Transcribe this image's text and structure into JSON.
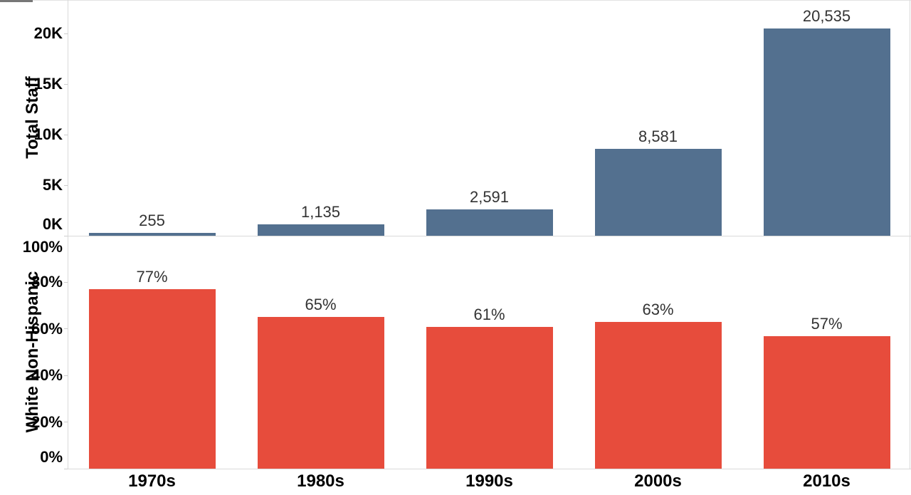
{
  "style": {
    "background": "#ffffff",
    "axis_line_color": "#d9d9d9",
    "tick_mark_color": "#cccccc",
    "value_label_color": "#333333",
    "axis_text_color": "#000000",
    "top_edge_color": "#e3e3e3",
    "top_edge_accent_color": "#777777"
  },
  "chart_data": [
    {
      "type": "bar",
      "pane": "top",
      "title": "",
      "xlabel": "",
      "ylabel": "Total Staff",
      "categories": [
        "1970s",
        "1980s",
        "1990s",
        "2000s",
        "2010s"
      ],
      "values": [
        255,
        1135,
        2591,
        8581,
        20535
      ],
      "value_labels": [
        "255",
        "1,135",
        "2,591",
        "8,581",
        "20,535"
      ],
      "bar_color": "#53708f",
      "ylim": [
        0,
        23350
      ],
      "yticks": [
        {
          "value": 0,
          "label": "0K"
        },
        {
          "value": 5000,
          "label": "5K"
        },
        {
          "value": 10000,
          "label": "10K"
        },
        {
          "value": 15000,
          "label": "15K"
        },
        {
          "value": 20000,
          "label": "20K"
        }
      ],
      "grid": false,
      "legend": false
    },
    {
      "type": "bar",
      "pane": "bottom",
      "title": "",
      "xlabel": "",
      "ylabel": "White Non-Hispanic",
      "categories": [
        "1970s",
        "1980s",
        "1990s",
        "2000s",
        "2010s"
      ],
      "values": [
        77,
        65,
        61,
        63,
        57
      ],
      "value_labels": [
        "77%",
        "65%",
        "61%",
        "63%",
        "57%"
      ],
      "bar_color": "#e74c3c",
      "ylim": [
        0,
        100
      ],
      "yticks": [
        {
          "value": 0,
          "label": "0%"
        },
        {
          "value": 20,
          "label": "20%"
        },
        {
          "value": 40,
          "label": "40%"
        },
        {
          "value": 60,
          "label": "60%"
        },
        {
          "value": 80,
          "label": "80%"
        },
        {
          "value": 100,
          "label": "100%"
        }
      ],
      "grid": false,
      "legend": false
    }
  ]
}
